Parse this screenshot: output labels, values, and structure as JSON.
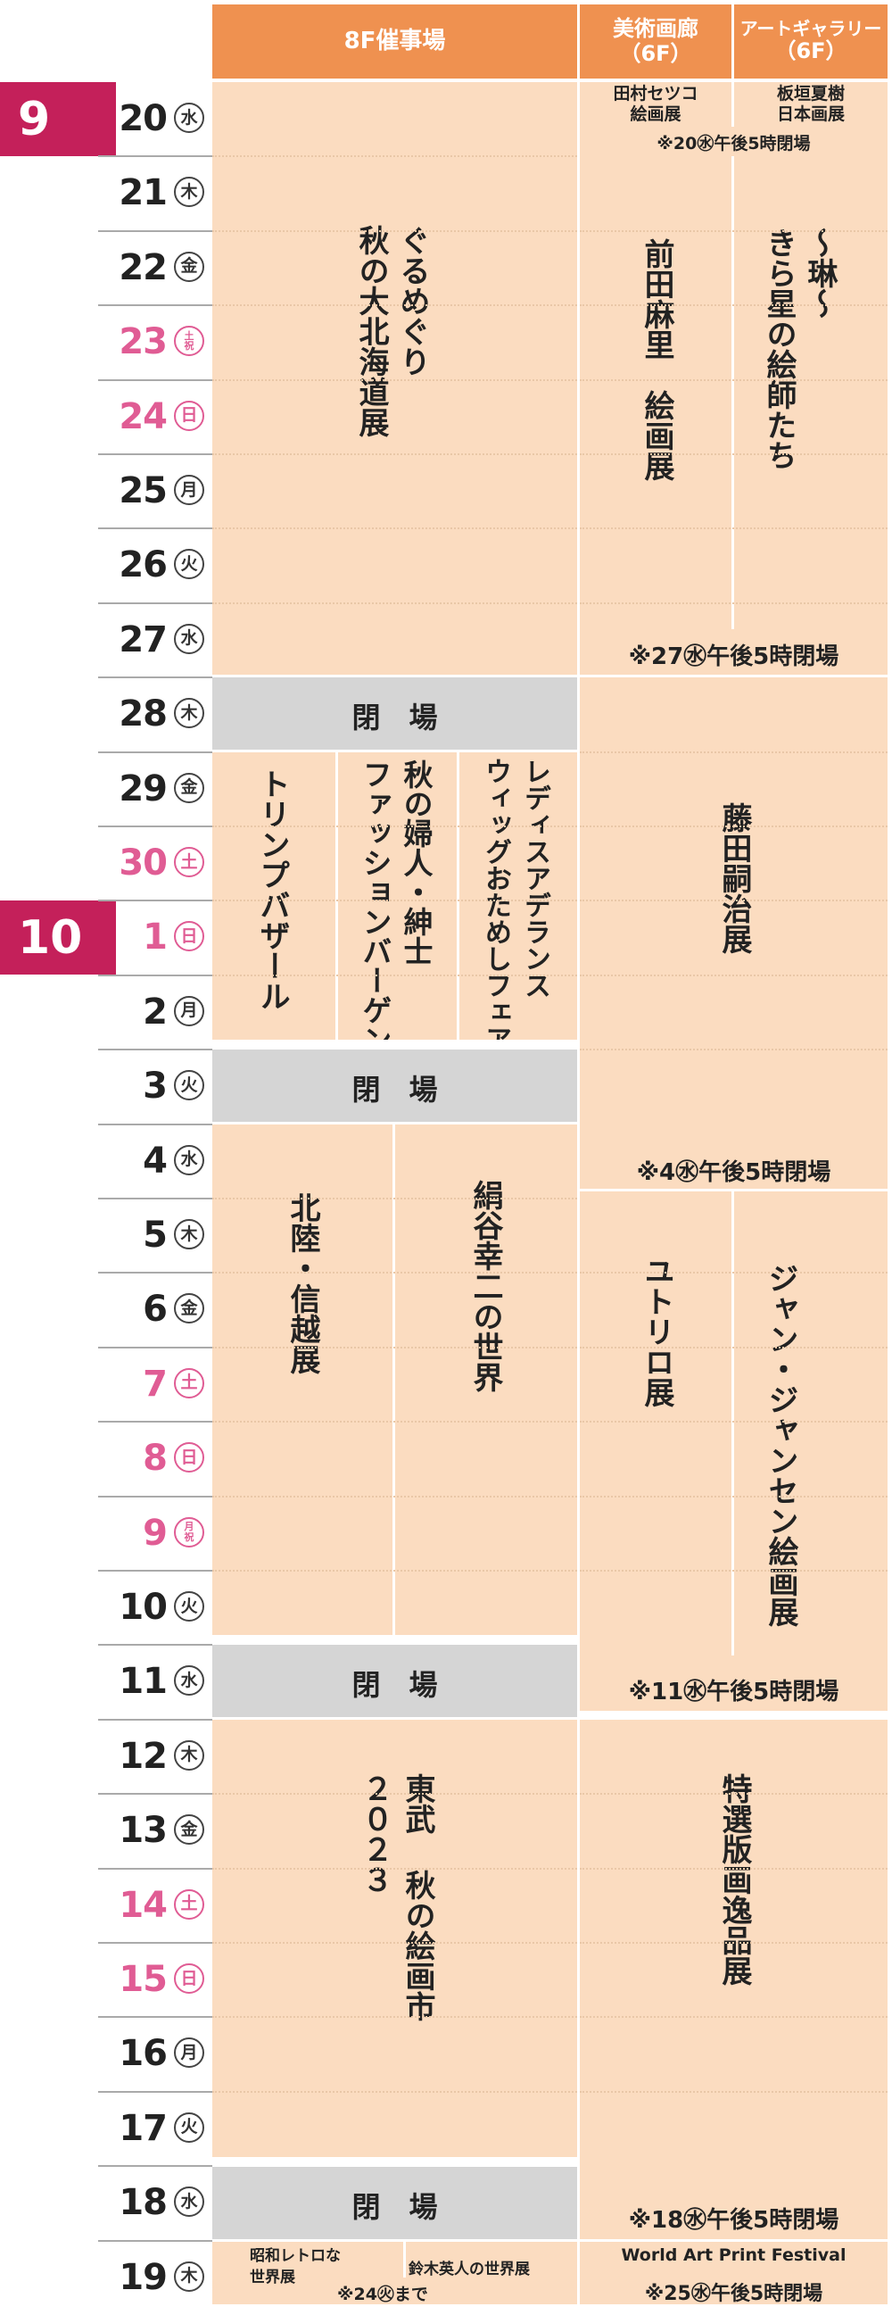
{
  "colors": {
    "header": "#ef9150",
    "cell": "#fbdcc0",
    "closed": "#d5d5d5",
    "month": "#c4205a",
    "holiday": "#e05c94"
  },
  "headers": {
    "hall": "8F催事場",
    "gallery_a": [
      "美術画廊",
      "（6F）"
    ],
    "gallery_b": [
      "アートギャラリー",
      "（6F）"
    ]
  },
  "months": [
    {
      "label": "9",
      "row": 0
    },
    {
      "label": "10",
      "row": 11
    }
  ],
  "days": [
    {
      "num": "20",
      "dow": [
        "水"
      ],
      "holiday": false
    },
    {
      "num": "21",
      "dow": [
        "木"
      ],
      "holiday": false
    },
    {
      "num": "22",
      "dow": [
        "金"
      ],
      "holiday": false
    },
    {
      "num": "23",
      "dow": [
        "土",
        "祝"
      ],
      "holiday": true
    },
    {
      "num": "24",
      "dow": [
        "日"
      ],
      "holiday": true
    },
    {
      "num": "25",
      "dow": [
        "月"
      ],
      "holiday": false
    },
    {
      "num": "26",
      "dow": [
        "火"
      ],
      "holiday": false
    },
    {
      "num": "27",
      "dow": [
        "水"
      ],
      "holiday": false
    },
    {
      "num": "28",
      "dow": [
        "木"
      ],
      "holiday": false
    },
    {
      "num": "29",
      "dow": [
        "金"
      ],
      "holiday": false
    },
    {
      "num": "30",
      "dow": [
        "土"
      ],
      "holiday": true
    },
    {
      "num": "1",
      "dow": [
        "日"
      ],
      "holiday": true
    },
    {
      "num": "2",
      "dow": [
        "月"
      ],
      "holiday": false
    },
    {
      "num": "3",
      "dow": [
        "火"
      ],
      "holiday": false
    },
    {
      "num": "4",
      "dow": [
        "水"
      ],
      "holiday": false
    },
    {
      "num": "5",
      "dow": [
        "木"
      ],
      "holiday": false
    },
    {
      "num": "6",
      "dow": [
        "金"
      ],
      "holiday": false
    },
    {
      "num": "7",
      "dow": [
        "土"
      ],
      "holiday": true
    },
    {
      "num": "8",
      "dow": [
        "日"
      ],
      "holiday": true
    },
    {
      "num": "9",
      "dow": [
        "月",
        "祝"
      ],
      "holiday": true
    },
    {
      "num": "10",
      "dow": [
        "火"
      ],
      "holiday": false
    },
    {
      "num": "11",
      "dow": [
        "水"
      ],
      "holiday": false
    },
    {
      "num": "12",
      "dow": [
        "木"
      ],
      "holiday": false
    },
    {
      "num": "13",
      "dow": [
        "金"
      ],
      "holiday": false
    },
    {
      "num": "14",
      "dow": [
        "土"
      ],
      "holiday": true
    },
    {
      "num": "15",
      "dow": [
        "日"
      ],
      "holiday": true
    },
    {
      "num": "16",
      "dow": [
        "月"
      ],
      "holiday": false
    },
    {
      "num": "17",
      "dow": [
        "火"
      ],
      "holiday": false
    },
    {
      "num": "18",
      "dow": [
        "水"
      ],
      "holiday": false
    },
    {
      "num": "19",
      "dow": [
        "木"
      ],
      "holiday": false
    }
  ],
  "events": {
    "hall_gurumeguri": "ぐるめぐり\n秋の大北海道展",
    "closed": "閉　場",
    "triumph": "トリンプバザール",
    "fashion": "秋の婦人・紳士\nファッションバーゲン",
    "ladies_aderans": "レディスアデランス\nウィッグおためしフェア",
    "hokuriku": "北陸・信越展",
    "kinuya": "絹谷幸二の世界",
    "tobu_kaiga": "東武 秋の絵画市\n２０２３",
    "showa_retro": "昭和レトロな\n世界展",
    "suzuki": "鈴木英人の世界展",
    "until_24": "※24㊋まで",
    "tamura": "田村セツコ\n絵画展",
    "itagaki": "板垣夏樹\n日本画展",
    "note_20": "※20㊌午後5時閉場",
    "maeda": "前田麻里　絵画展",
    "rin": "〜琳〜\nきら星の絵師たち",
    "note_27": "※27㊌午後5時閉場",
    "fujita": "藤田嗣治展",
    "note_4": "※4㊌午後5時閉場",
    "utrillo": "ユトリロ展",
    "jansem": "ジャン・ジャンセン絵画展",
    "note_11": "※11㊌午後5時閉場",
    "tokusen": "特選版画逸品展",
    "note_18": "※18㊌午後5時閉場",
    "world_art": "World Art Print Festival",
    "note_25": "※25㊌午後5時閉場"
  }
}
